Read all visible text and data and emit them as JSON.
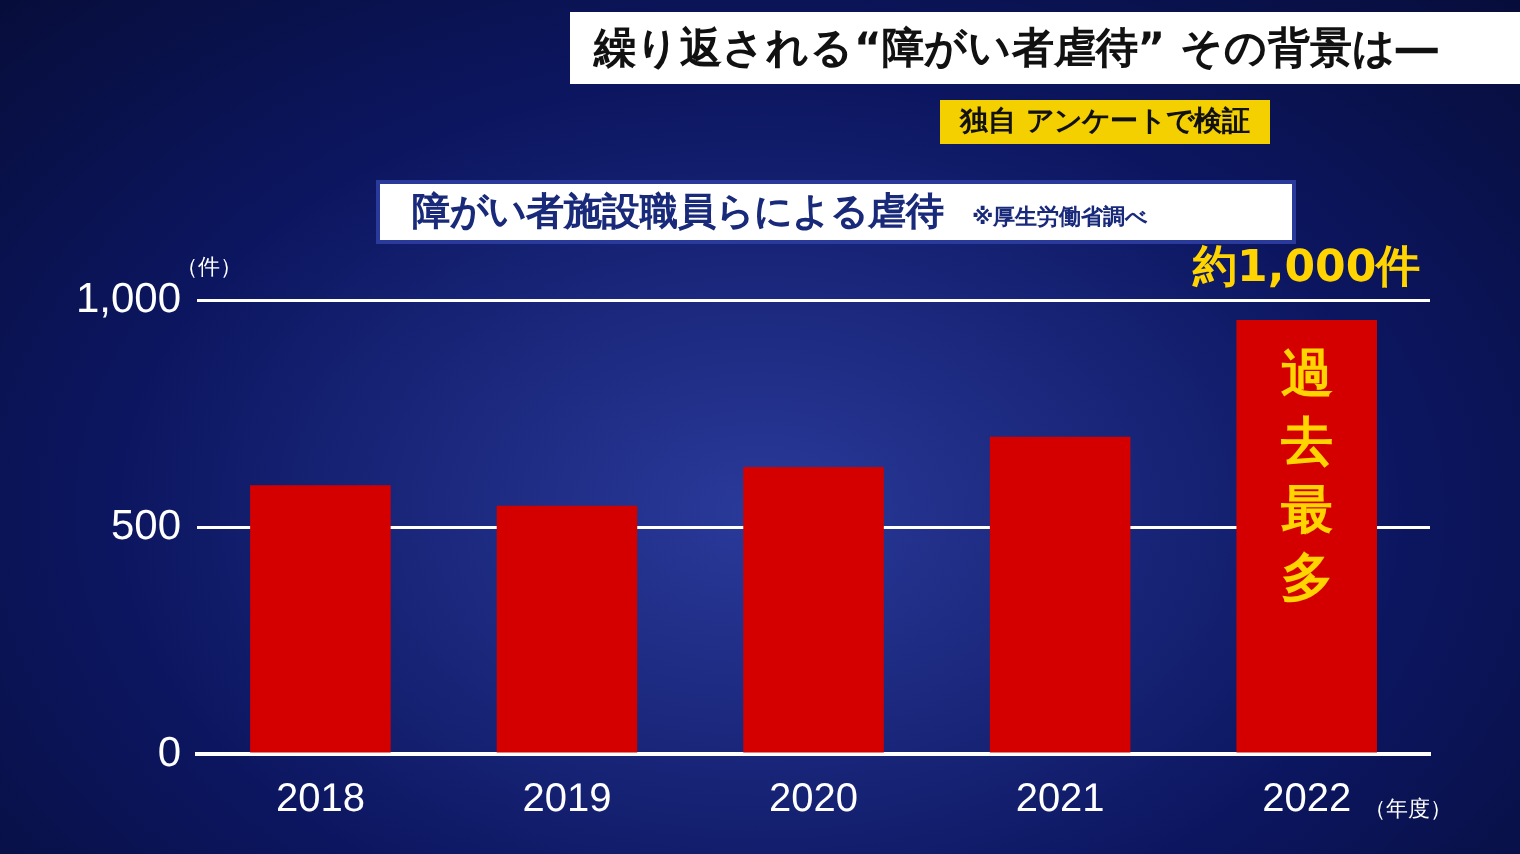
{
  "chart_data": {
    "type": "bar",
    "title": "障がい者施設職員らによる虐待",
    "subtitle": "繰り返される“障がい者虐待” その背景は―",
    "annotations": [
      "独自 アンケートで検証",
      "※厚生労働省調べ",
      {
        "text": "約1,000件",
        "x": "2022",
        "y": 956
      },
      {
        "text": "過去最多",
        "x": "2022",
        "y": 956
      }
    ],
    "ylabel": "（件）",
    "xlabel": "（年度）",
    "categories": [
      "2018",
      "2019",
      "2020",
      "2021",
      "2022"
    ],
    "values": [
      592,
      547,
      632,
      699,
      956
    ],
    "color": "#d40000",
    "ylim": [
      0,
      1000
    ],
    "yticks": [
      0,
      500,
      {
        "value": 1000,
        "label": "1,000"
      }
    ],
    "grid": "y"
  }
}
